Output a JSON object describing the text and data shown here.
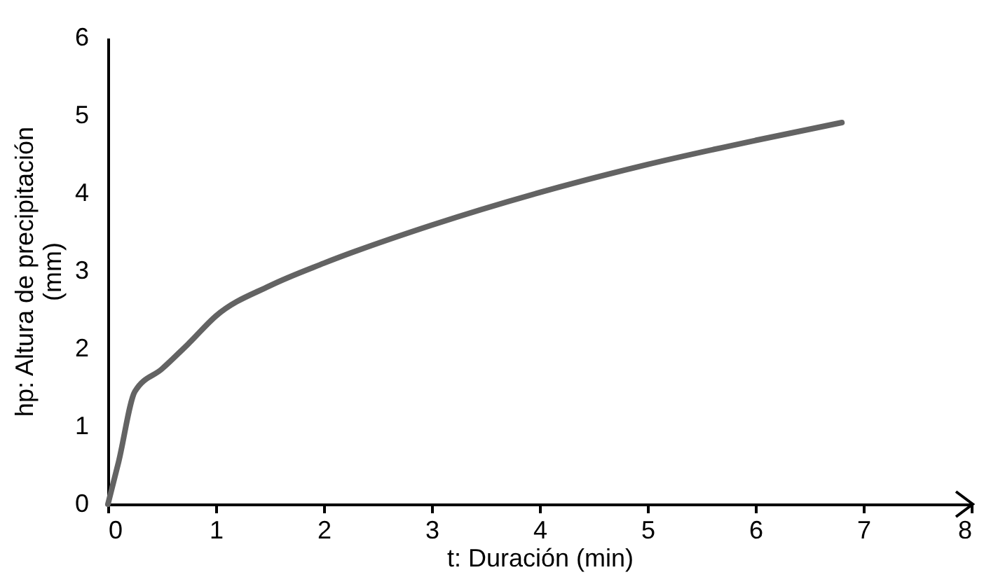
{
  "chart_data": {
    "type": "line",
    "xlabel": "t: Duración (min)",
    "ylabel": "hp: Altura de precipitación (mm)",
    "series": [
      {
        "color": "#636363",
        "x": [
          0,
          0.1,
          0.25,
          0.5,
          0.75,
          1,
          1.5,
          2,
          3,
          4,
          5,
          6,
          6.8
        ],
        "values": [
          0,
          0.55,
          1.45,
          1.74,
          2.07,
          2.42,
          2.81,
          3.1,
          3.59,
          4.01,
          4.37,
          4.68,
          4.91
        ]
      }
    ],
    "xlim": [
      0,
      8
    ],
    "xticks": [
      0,
      1,
      2,
      3,
      4,
      5,
      6,
      7,
      8
    ],
    "ylim": [
      0,
      6
    ],
    "yticks": [
      0,
      1,
      2,
      3,
      4,
      5,
      6
    ],
    "grid": false,
    "marker": "none",
    "line_style": "solid"
  }
}
